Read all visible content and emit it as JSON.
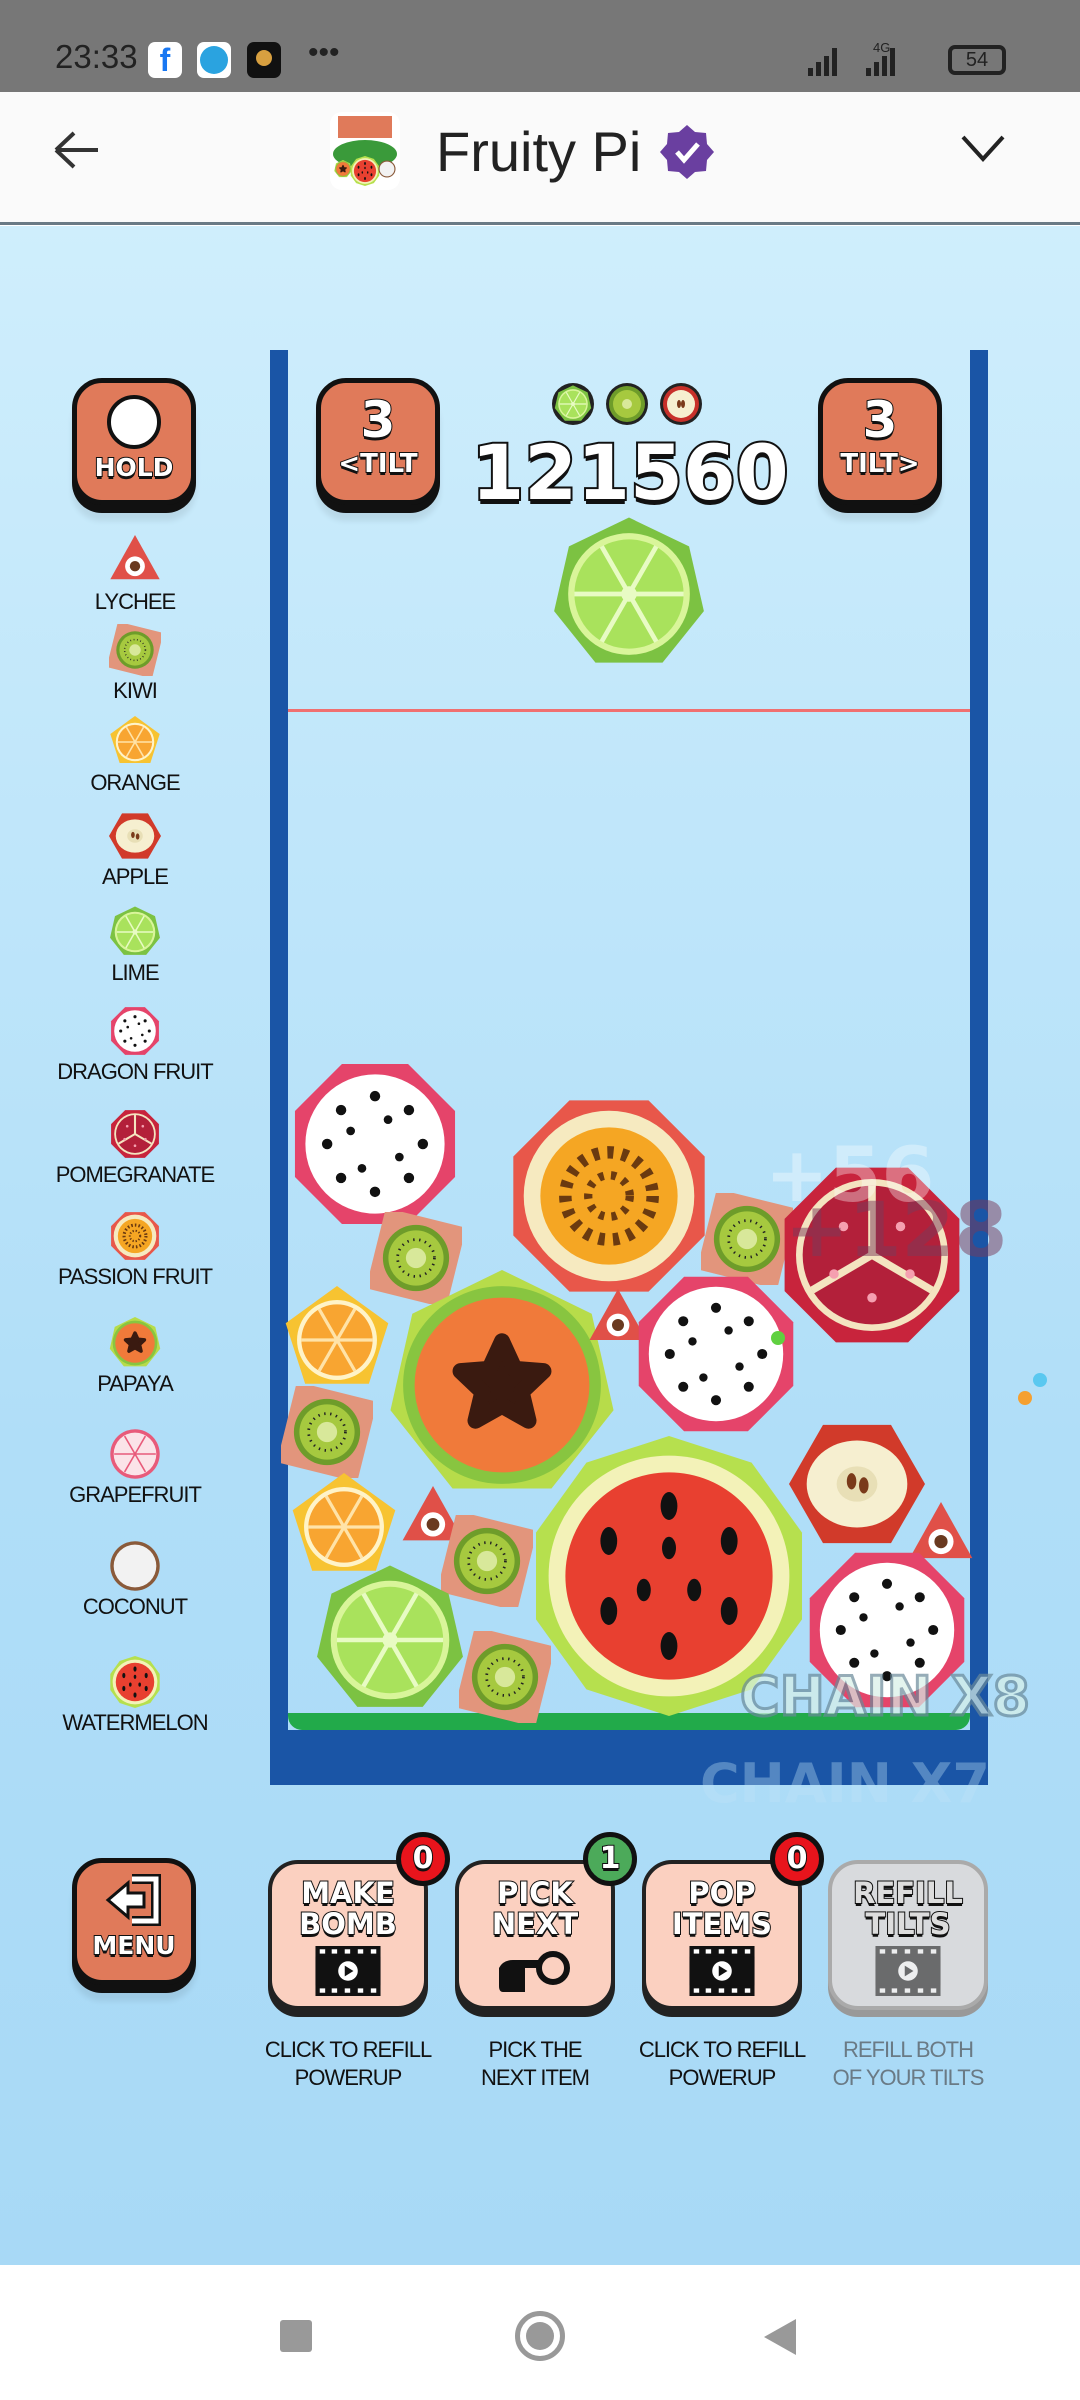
{
  "status_bar": {
    "time": "23:33",
    "network": "4G",
    "battery": "54",
    "apps": [
      "facebook-icon",
      "telegram-icon",
      "game-icon"
    ],
    "more": "•••"
  },
  "header": {
    "title": "Fruity Pi",
    "verified": true
  },
  "game": {
    "hold_label": "HOLD",
    "tilt_left": {
      "count": "3",
      "label": "<TILT"
    },
    "tilt_right": {
      "count": "3",
      "label": "TILT>"
    },
    "score": "121560",
    "next_fruits": [
      "lime",
      "kiwi",
      "apple"
    ],
    "current_fruit": "lime",
    "floating_texts": {
      "points_1": "+56",
      "points_2": "+128",
      "chain_1": "CHAIN X8",
      "chain_2": "CHAIN X7"
    },
    "legend": [
      {
        "label": "LYCHEE",
        "icon": "lychee"
      },
      {
        "label": "KIWI",
        "icon": "kiwi"
      },
      {
        "label": "ORANGE",
        "icon": "orange"
      },
      {
        "label": "APPLE",
        "icon": "apple"
      },
      {
        "label": "LIME",
        "icon": "lime"
      },
      {
        "label": "DRAGON FRUIT",
        "icon": "dragonfruit"
      },
      {
        "label": "POMEGRANATE",
        "icon": "pomegranate"
      },
      {
        "label": "PASSION FRUIT",
        "icon": "passionfruit"
      },
      {
        "label": "PAPAYA",
        "icon": "papaya"
      },
      {
        "label": "GRAPEFRUIT",
        "icon": "grapefruit"
      },
      {
        "label": "COCONUT",
        "icon": "coconut"
      },
      {
        "label": "WATERMELON",
        "icon": "watermelon"
      }
    ],
    "menu_label": "MENU",
    "powerups": [
      {
        "line1": "MAKE",
        "line2": "BOMB",
        "badge": "0",
        "badge_color": "#e8141c",
        "caption1": "CLICK TO REFILL",
        "caption2": "POWERUP",
        "icon": "video-icon"
      },
      {
        "line1": "PICK",
        "line2": "NEXT",
        "badge": "1",
        "badge_color": "#4caa5a",
        "caption1": "PICK THE",
        "caption2": "NEXT ITEM",
        "icon": "pointing-hand-icon"
      },
      {
        "line1": "POP",
        "line2": "ITEMS",
        "badge": "0",
        "badge_color": "#e8141c",
        "caption1": "CLICK TO REFILL",
        "caption2": "POWERUP",
        "icon": "video-icon"
      },
      {
        "line1": "REFILL",
        "line2": "TILTS",
        "caption1": "REFILL BOTH",
        "caption2": "OF YOUR TILTS",
        "icon": "video-icon",
        "disabled": true
      }
    ]
  },
  "colors": {
    "container": "#1a55a6",
    "floor": "#22aa4a",
    "danger_line": "#f07070",
    "button": "#e07a5a",
    "verified": "#6a3fa0"
  }
}
